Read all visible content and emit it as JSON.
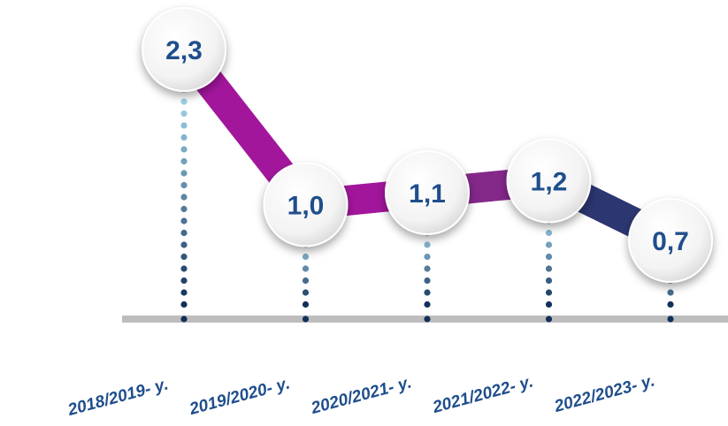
{
  "chart_data": {
    "type": "line",
    "categories": [
      "2018/2019- y.",
      "2019/2020- y.",
      "2020/2021- y.",
      "2021/2022- y.",
      "2022/2023- y."
    ],
    "values": [
      2.3,
      1.0,
      1.1,
      1.2,
      0.7
    ],
    "value_labels": [
      "2,3",
      "1,0",
      "1,1",
      "1,2",
      "0,7"
    ],
    "title": "",
    "xlabel": "",
    "ylabel": "",
    "ylim": [
      0,
      2.5
    ],
    "grid": false,
    "legend": "none"
  },
  "colors": {
    "label_text": "#1f4e8c",
    "baseline": "#bdbdbd",
    "segment_colors": [
      "#a2169c",
      "#a2169c",
      "#84288a",
      "#2c3670"
    ],
    "dot_light": "#aee3f7",
    "dot_dark": "#12305a",
    "bubble_fill": "#f2f2f2"
  }
}
